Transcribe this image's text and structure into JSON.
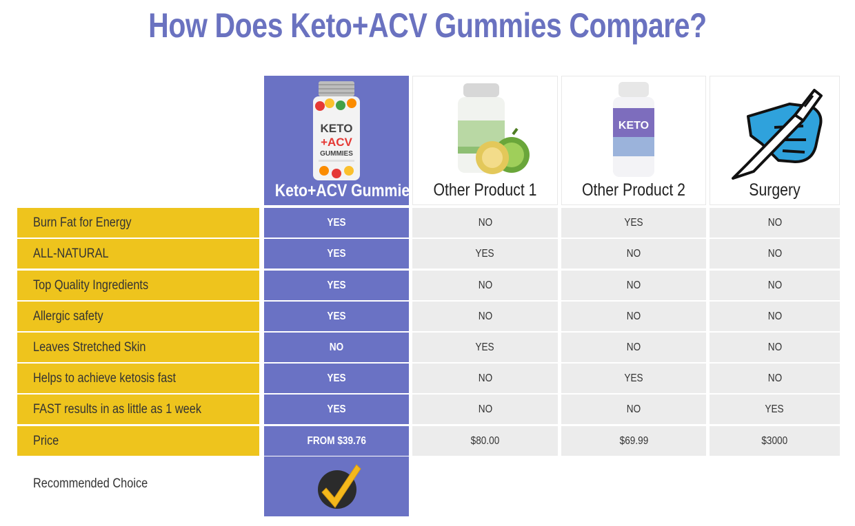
{
  "title": "How Does Keto+ACV Gummies Compare?",
  "products": [
    {
      "name": "Keto+ACV Gummies",
      "icon": "keto-acv-gummies-bottle-icon",
      "featured": true
    },
    {
      "name": "Other Product 1",
      "icon": "garcinia-bottle-icon",
      "featured": false
    },
    {
      "name": "Other Product 2",
      "icon": "keto-bottle-icon",
      "featured": false
    },
    {
      "name": "Surgery",
      "icon": "scalpel-hand-icon",
      "featured": false
    }
  ],
  "product_image_text": {
    "keto_bottle": [
      "KETO",
      "+ACV",
      "GUMMIES"
    ],
    "other2_bottle": "KETO"
  },
  "rows": [
    {
      "label": "Burn Fat for Energy",
      "values": [
        "YES",
        "NO",
        "YES",
        "NO"
      ]
    },
    {
      "label": "ALL-NATURAL",
      "values": [
        "YES",
        "YES",
        "NO",
        "NO"
      ]
    },
    {
      "label": "Top Quality Ingredients",
      "values": [
        "YES",
        "NO",
        "NO",
        "NO"
      ]
    },
    {
      "label": "Allergic safety",
      "values": [
        "YES",
        "NO",
        "NO",
        "NO"
      ]
    },
    {
      "label": "Leaves Stretched Skin",
      "values": [
        "NO",
        "YES",
        "NO",
        "NO"
      ]
    },
    {
      "label": "Helps to achieve ketosis fast",
      "values": [
        "YES",
        "NO",
        "YES",
        "NO"
      ]
    },
    {
      "label": "FAST results in as little as 1 week",
      "values": [
        "YES",
        "NO",
        "NO",
        "YES"
      ]
    },
    {
      "label": "Price",
      "values": [
        "FROM $39.76",
        "$80.00",
        "$69.99",
        "$3000"
      ]
    }
  ],
  "recommended": {
    "label": "Recommended Choice",
    "icon": "checkmark-badge-icon"
  },
  "colors": {
    "title": "#6a72c0",
    "featured_column": "#6a72c4",
    "label_column": "#eec41d",
    "cell_background": "#ececec"
  }
}
